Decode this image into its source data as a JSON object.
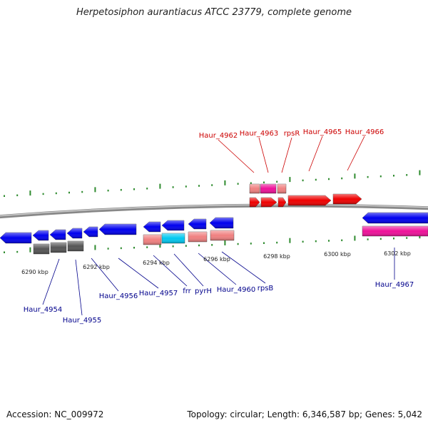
{
  "title": "Herpetosiphon aurantiacus ATCC 23779, complete genome",
  "accession": "Accession: NC_009972",
  "topology": "Topology: circular; Length: 6,346,587 bp; Genes: 5,042",
  "colors": {
    "forward_gene": "#ee0000",
    "forward_light": "#f08080",
    "forward_pink": "#ee1199",
    "reverse_gene": "#0000ee",
    "reverse_light": "#f08080",
    "reverse_grey": "#555555",
    "reverse_cyan": "#00c8f0",
    "reverse_pink": "#ee1199",
    "tick": "#2e8b2e",
    "label_forward": "#cc0000",
    "label_reverse": "#00008b",
    "backbone": "#888888"
  },
  "scale_labels": [
    "6290 kbp",
    "6292 kbp",
    "6294 kbp",
    "6296 kbp",
    "6298 kbp",
    "6300 kbp",
    "6302 kbp"
  ],
  "top_labels": [
    "Haur_4962",
    "Haur_4963",
    "rpsR",
    "Haur_4965",
    "Haur_4966"
  ],
  "bottom_labels": [
    "Haur_4954",
    "Haur_4955",
    "Haur_4956",
    "Haur_4957",
    "frr",
    "pyrH",
    "Haur_4960",
    "rpsB",
    "Haur_4967"
  ]
}
